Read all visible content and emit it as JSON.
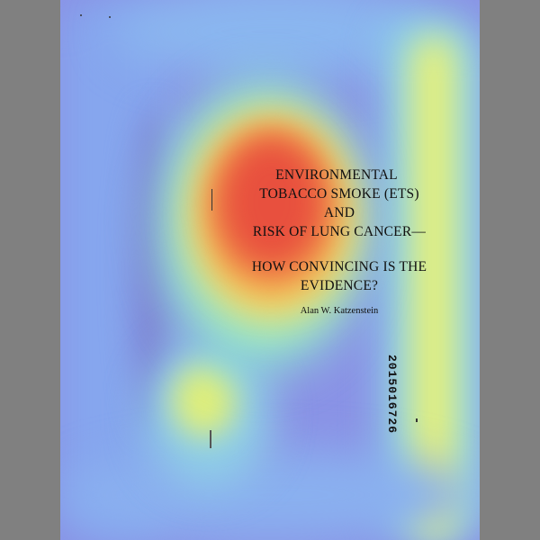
{
  "document": {
    "title_lines": [
      "ENVIRONMENTAL",
      "TOBACCO SMOKE (ETS)",
      "AND",
      "RISK OF LUNG CANCER—"
    ],
    "subtitle_lines": [
      "HOW CONVINCING IS THE",
      "EVIDENCE?"
    ],
    "author": "Alan W. Katzenstein",
    "document_number": "2015016726"
  }
}
